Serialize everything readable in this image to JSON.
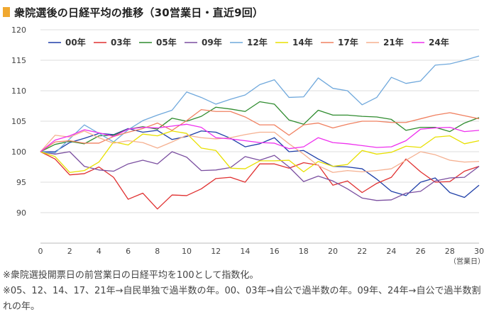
{
  "header": {
    "title": "衆院選後の日経平均の推移（30営業日・直近9回）"
  },
  "notes": {
    "line1": "※衆院選投開票日の前営業日の日経平均を100として指数化。",
    "line2": "※05、12、14、17、21年→自民単独で過半数の年。00、03年→自公で過半数の年。09年、24年→自公で過半数割れの年。"
  },
  "chart_data": {
    "type": "line",
    "title": "衆院選後の日経平均の推移（30営業日・直近9回）",
    "xlabel": "（営業日）",
    "ylabel": "",
    "xlim": [
      0,
      30
    ],
    "ylim": [
      85,
      120
    ],
    "xticks": [
      0,
      2,
      4,
      6,
      8,
      10,
      12,
      14,
      16,
      18,
      20,
      22,
      24,
      26,
      28,
      30
    ],
    "yticks": [
      90,
      95,
      100,
      105,
      110,
      115,
      120
    ],
    "grid": true,
    "legend_position": "top",
    "x": [
      0,
      1,
      2,
      3,
      4,
      5,
      6,
      7,
      8,
      9,
      10,
      11,
      12,
      13,
      14,
      15,
      16,
      17,
      18,
      19,
      20,
      21,
      22,
      23,
      24,
      25,
      26,
      27,
      28,
      29,
      30
    ],
    "series": [
      {
        "name": "00年",
        "color": "#1f3fa8",
        "values": [
          100,
          100,
          101.5,
          102.2,
          103,
          102.8,
          103.8,
          103.2,
          103.5,
          102,
          102.5,
          103.4,
          103.2,
          102.2,
          100.8,
          101.3,
          102.3,
          100,
          100.2,
          98.8,
          97.6,
          97.5,
          97.2,
          95.5,
          93.5,
          92.8,
          95,
          95.7,
          93.3,
          92.5,
          94.5
        ]
      },
      {
        "name": "03年",
        "color": "#e03030",
        "values": [
          100,
          98.8,
          96.2,
          96.4,
          97.5,
          95.8,
          92.2,
          93.2,
          90.6,
          92.9,
          92.8,
          93.9,
          95.6,
          95.8,
          95,
          98,
          98,
          97.3,
          98.2,
          97.8,
          94.5,
          95.2,
          93.3,
          94.8,
          95.8,
          98.8,
          96.7,
          95,
          95.1,
          96.8,
          97.6
        ]
      },
      {
        "name": "05年",
        "color": "#2e8b2e",
        "values": [
          100,
          101.2,
          101.7,
          101.3,
          102.6,
          102.7,
          103.7,
          104.1,
          103.7,
          105.5,
          105,
          105.8,
          107.3,
          107,
          106.6,
          108.2,
          107.8,
          105.2,
          104.5,
          106.8,
          106,
          106,
          105.8,
          105.7,
          105.3,
          103.5,
          104,
          104,
          103.3,
          104.7,
          105.6
        ]
      },
      {
        "name": "09年",
        "color": "#7b4fa0",
        "values": [
          100,
          99.6,
          100,
          97.6,
          97,
          96.8,
          98,
          98.6,
          98,
          100,
          99.1,
          96.9,
          97,
          97.4,
          99.2,
          98.6,
          99.4,
          97.5,
          95.1,
          96,
          95.2,
          93.9,
          92.4,
          92,
          92.1,
          93.2,
          93.5,
          95.2,
          95.7,
          95.8,
          97.6
        ]
      },
      {
        "name": "12年",
        "color": "#6fa8dc",
        "values": [
          100,
          99.8,
          102.1,
          104.4,
          103,
          101.6,
          103.6,
          105.1,
          106,
          106.8,
          109.8,
          108.9,
          107.8,
          108.6,
          109.3,
          111,
          111.8,
          108.9,
          109,
          112.1,
          110.4,
          110,
          107.7,
          108.9,
          112.2,
          111.2,
          111.6,
          114.2,
          114.4,
          115,
          115.7
        ]
      },
      {
        "name": "14年",
        "color": "#e8e000",
        "values": [
          100,
          99.2,
          96.6,
          96.9,
          98.3,
          101.6,
          101.1,
          102.9,
          102.6,
          103.4,
          103,
          100.6,
          100.2,
          97.3,
          97.2,
          98.5,
          98.5,
          98.6,
          96.7,
          98.4,
          97.6,
          97.9,
          100.2,
          99.6,
          99.9,
          100.9,
          100.7,
          102.4,
          102.6,
          101.3,
          101.8
        ]
      },
      {
        "name": "17年",
        "color": "#f08060",
        "values": [
          100,
          101.6,
          101.8,
          101.4,
          101.4,
          102.5,
          103.2,
          103.8,
          104.7,
          103.5,
          105.1,
          106.9,
          106.6,
          106.6,
          105.7,
          104.4,
          104.4,
          102.7,
          104.4,
          104.7,
          103.9,
          104.5,
          105,
          105,
          104.8,
          104.8,
          105.4,
          106,
          106.4,
          105.9,
          105.4
        ]
      },
      {
        "name": "21年",
        "color": "#f5b090",
        "values": [
          100,
          102.7,
          102.4,
          103.4,
          102.3,
          101.4,
          101.8,
          101.5,
          100.6,
          101.6,
          102.7,
          102.3,
          102.1,
          102.3,
          102.8,
          103.2,
          103.2,
          101.3,
          99.6,
          97.7,
          96.6,
          96.9,
          96.7,
          96.9,
          97.2,
          98.6,
          100,
          99.5,
          98.6,
          98.3,
          98.4
        ]
      },
      {
        "name": "24年",
        "color": "#ee30ee",
        "values": [
          100,
          101.9,
          102.6,
          103.6,
          103.1,
          102.5,
          103.7,
          104,
          103.9,
          104.2,
          104.5,
          104,
          102.3,
          102.1,
          101.8,
          101.5,
          101.4,
          100.5,
          100.8,
          102.3,
          101.5,
          101.3,
          101,
          100.7,
          100.8,
          101.8,
          103.7,
          103.9,
          104,
          103.3,
          103.5
        ]
      }
    ]
  }
}
